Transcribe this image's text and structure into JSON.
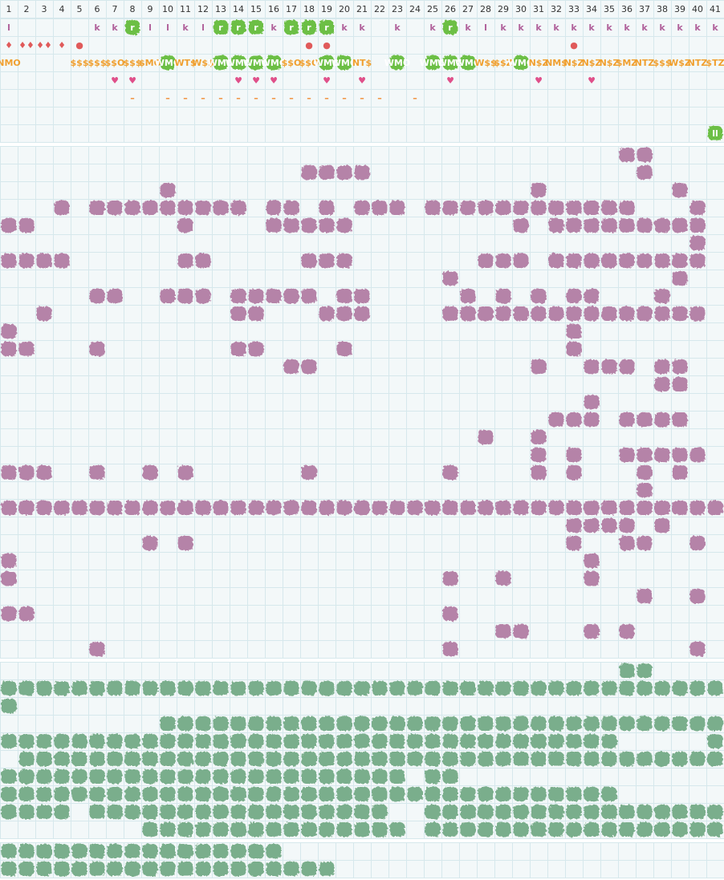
{
  "columns": [
    1,
    2,
    3,
    4,
    5,
    6,
    7,
    8,
    9,
    10,
    11,
    12,
    13,
    14,
    15,
    16,
    17,
    18,
    19,
    20,
    21,
    22,
    23,
    24,
    25,
    26,
    27,
    28,
    29,
    30,
    31,
    32,
    33,
    34,
    35,
    36,
    37,
    38,
    39,
    40,
    41
  ],
  "top_rows": [
    {
      "color": "#b0609a",
      "cells": [
        {
          "col": 1,
          "text": "l"
        },
        {
          "col": 6,
          "text": "k"
        },
        {
          "col": 7,
          "text": "k"
        },
        {
          "col": 8,
          "text": "r",
          "highlight": true
        },
        {
          "col": 9,
          "text": "l"
        },
        {
          "col": 10,
          "text": "l"
        },
        {
          "col": 11,
          "text": "k"
        },
        {
          "col": 12,
          "text": "l"
        },
        {
          "col": 13,
          "text": "r",
          "highlight": true
        },
        {
          "col": 14,
          "text": "r",
          "highlight": true
        },
        {
          "col": 15,
          "text": "r",
          "highlight": true
        },
        {
          "col": 16,
          "text": "k"
        },
        {
          "col": 17,
          "text": "r",
          "highlight": true
        },
        {
          "col": 18,
          "text": "r",
          "highlight": true
        },
        {
          "col": 19,
          "text": "r",
          "highlight": true
        },
        {
          "col": 20,
          "text": "k"
        },
        {
          "col": 21,
          "text": "k"
        },
        {
          "col": 23,
          "text": "k"
        },
        {
          "col": 25,
          "text": "k"
        },
        {
          "col": 26,
          "text": "r",
          "highlight": true
        },
        {
          "col": 27,
          "text": "k"
        },
        {
          "col": 28,
          "text": "l"
        },
        {
          "col": 29,
          "text": "k"
        },
        {
          "col": 30,
          "text": "k"
        },
        {
          "col": 31,
          "text": "k"
        },
        {
          "col": 32,
          "text": "k"
        },
        {
          "col": 33,
          "text": "k"
        },
        {
          "col": 34,
          "text": "k"
        },
        {
          "col": 35,
          "text": "k"
        },
        {
          "col": 36,
          "text": "k"
        },
        {
          "col": 37,
          "text": "k"
        },
        {
          "col": 38,
          "text": "k"
        },
        {
          "col": 39,
          "text": "k"
        },
        {
          "col": 40,
          "text": "k"
        },
        {
          "col": 41,
          "text": "k"
        }
      ]
    },
    {
      "color": "#e05a5a",
      "cells": [
        {
          "col": 1,
          "text": "♦"
        },
        {
          "col": 2,
          "text": "♦♦"
        },
        {
          "col": 3,
          "text": "♦♦"
        },
        {
          "col": 4,
          "text": "♦"
        },
        {
          "col": 5,
          "text": "●"
        },
        {
          "col": 18,
          "text": "●"
        },
        {
          "col": 19,
          "text": "●"
        },
        {
          "col": 33,
          "text": "●"
        }
      ]
    },
    {
      "color": "#f0a030",
      "cells": [
        {
          "col": 1,
          "text": "NMO"
        },
        {
          "col": 5,
          "text": "$$$"
        },
        {
          "col": 6,
          "text": "$$$"
        },
        {
          "col": 7,
          "text": "$$O"
        },
        {
          "col": 8,
          "text": "$$$"
        },
        {
          "col": 9,
          "text": "$MO"
        },
        {
          "col": 10,
          "text": "WMO",
          "highlight": true
        },
        {
          "col": 11,
          "text": "WT$"
        },
        {
          "col": 12,
          "text": "W$$"
        },
        {
          "col": 13,
          "text": "WMO",
          "highlight": true
        },
        {
          "col": 14,
          "text": "WMO",
          "highlight": true
        },
        {
          "col": 15,
          "text": "WMO",
          "highlight": true
        },
        {
          "col": 16,
          "text": "WMO",
          "highlight": true
        },
        {
          "col": 17,
          "text": "$$O"
        },
        {
          "col": 18,
          "text": "$$O"
        },
        {
          "col": 19,
          "text": "WMO",
          "highlight": true
        },
        {
          "col": 20,
          "text": "WMO",
          "highlight": true
        },
        {
          "col": 21,
          "text": "NT$"
        },
        {
          "col": 23,
          "text": "WMO",
          "highlight": true
        },
        {
          "col": 25,
          "text": "WMO",
          "highlight": true
        },
        {
          "col": 26,
          "text": "WMO",
          "highlight": true
        },
        {
          "col": 27,
          "text": "WMO",
          "highlight": true
        },
        {
          "col": 28,
          "text": "W$$"
        },
        {
          "col": 29,
          "text": "$$Z"
        },
        {
          "col": 30,
          "text": "WMO",
          "highlight": true
        },
        {
          "col": 31,
          "text": "N$Z"
        },
        {
          "col": 32,
          "text": "NM$"
        },
        {
          "col": 33,
          "text": "N$Z"
        },
        {
          "col": 34,
          "text": "N$Z"
        },
        {
          "col": 35,
          "text": "N$Z"
        },
        {
          "col": 36,
          "text": "$MZ"
        },
        {
          "col": 37,
          "text": "NTZ"
        },
        {
          "col": 38,
          "text": "$$$"
        },
        {
          "col": 39,
          "text": "W$Z"
        },
        {
          "col": 40,
          "text": "NTZ"
        },
        {
          "col": 41,
          "text": "$TZ"
        }
      ]
    },
    {
      "color": "#e0508a",
      "cells": [
        {
          "col": 7,
          "text": "♥"
        },
        {
          "col": 8,
          "text": "♥"
        },
        {
          "col": 14,
          "text": "♥"
        },
        {
          "col": 15,
          "text": "♥"
        },
        {
          "col": 16,
          "text": "♥"
        },
        {
          "col": 19,
          "text": "♥"
        },
        {
          "col": 21,
          "text": "♥"
        },
        {
          "col": 26,
          "text": "♥"
        },
        {
          "col": 31,
          "text": "♥"
        },
        {
          "col": 34,
          "text": "♥"
        }
      ]
    },
    {
      "color": "#f08a30",
      "cells": [
        {
          "col": 8,
          "text": "–"
        },
        {
          "col": 10,
          "text": "–"
        },
        {
          "col": 11,
          "text": "–"
        },
        {
          "col": 12,
          "text": "–"
        },
        {
          "col": 13,
          "text": "–"
        },
        {
          "col": 14,
          "text": "–"
        },
        {
          "col": 15,
          "text": "–"
        },
        {
          "col": 16,
          "text": "–"
        },
        {
          "col": 17,
          "text": "–"
        },
        {
          "col": 18,
          "text": "–"
        },
        {
          "col": 19,
          "text": "–"
        },
        {
          "col": 20,
          "text": "–"
        },
        {
          "col": 21,
          "text": "–"
        },
        {
          "col": 22,
          "text": "–"
        },
        {
          "col": 24,
          "text": "–"
        }
      ]
    },
    {
      "color": "#f08a30",
      "cells": []
    },
    {
      "color": "#ffffff",
      "cells": [
        {
          "col": 41,
          "text": "ll",
          "highlight": true
        }
      ]
    }
  ],
  "highlight_color": "#6cbf45",
  "sections": [
    {
      "color": "#b583a8",
      "rows": [
        [
          36,
          37
        ],
        [
          18,
          19,
          20,
          21,
          37
        ],
        [
          10,
          31,
          39
        ],
        [
          4,
          6,
          7,
          8,
          9,
          10,
          11,
          12,
          13,
          14,
          16,
          17,
          19,
          21,
          22,
          23,
          25,
          26,
          27,
          28,
          29,
          30,
          31,
          32,
          33,
          34,
          35,
          36,
          40
        ],
        [
          1,
          2,
          11,
          16,
          17,
          18,
          19,
          20,
          30,
          32,
          33,
          34,
          35,
          36,
          37,
          38,
          39,
          40
        ],
        [
          40
        ],
        [
          1,
          2,
          3,
          4,
          11,
          12,
          18,
          19,
          20,
          28,
          29,
          30,
          32,
          33,
          34,
          35,
          36,
          37,
          38,
          39,
          40
        ],
        [
          26,
          39
        ],
        [
          6,
          7,
          10,
          11,
          12,
          14,
          15,
          16,
          17,
          18,
          20,
          21,
          27,
          29,
          31,
          33,
          34,
          38
        ],
        [
          3,
          14,
          15,
          19,
          20,
          21,
          26,
          27,
          28,
          29,
          30,
          31,
          32,
          33,
          34,
          35,
          36,
          37,
          38,
          39,
          40
        ],
        [
          1,
          33
        ],
        [
          1,
          2,
          6,
          14,
          15,
          20,
          33
        ],
        [
          17,
          18,
          31,
          34,
          35,
          36,
          38,
          39
        ],
        [
          38,
          39
        ],
        [
          34
        ],
        [
          32,
          33,
          34,
          36,
          37,
          38,
          39
        ],
        [
          28,
          31
        ],
        [
          31,
          33,
          36,
          37,
          38,
          39,
          40
        ],
        [
          1,
          2,
          3,
          6,
          9,
          11,
          18,
          26,
          31,
          33,
          37,
          39
        ],
        [
          37
        ],
        [
          1,
          2,
          3,
          4,
          5,
          6,
          7,
          8,
          9,
          10,
          11,
          12,
          13,
          14,
          15,
          16,
          17,
          18,
          19,
          20,
          21,
          22,
          23,
          24,
          25,
          26,
          27,
          28,
          29,
          30,
          31,
          32,
          33,
          34,
          35,
          36,
          37,
          38,
          39,
          40,
          41
        ],
        [
          33,
          34,
          35,
          36,
          38
        ],
        [
          9,
          11,
          33,
          36,
          37,
          40
        ],
        [
          1,
          34
        ],
        [
          1,
          26,
          29,
          34
        ],
        [
          37,
          40
        ],
        [
          1,
          2,
          26
        ],
        [
          29,
          30,
          34,
          36
        ],
        [
          6,
          26,
          40
        ]
      ]
    },
    {
      "color": "#7aae8c",
      "rows": [
        [
          36,
          37
        ],
        [
          1,
          2,
          3,
          4,
          5,
          6,
          7,
          8,
          9,
          10,
          11,
          12,
          13,
          14,
          15,
          16,
          17,
          18,
          19,
          20,
          21,
          22,
          23,
          24,
          25,
          26,
          27,
          28,
          29,
          30,
          31,
          32,
          33,
          34,
          35,
          36,
          37,
          38,
          39,
          40,
          41
        ],
        [
          1
        ],
        [
          10,
          11,
          12,
          13,
          14,
          15,
          16,
          17,
          18,
          19,
          20,
          21,
          22,
          23,
          24,
          25,
          26,
          27,
          28,
          29,
          30,
          31,
          32,
          33,
          34,
          35,
          36,
          37,
          38,
          39,
          40,
          41
        ],
        [
          1,
          2,
          3,
          4,
          5,
          6,
          7,
          8,
          9,
          10,
          11,
          12,
          13,
          14,
          15,
          16,
          17,
          18,
          19,
          20,
          21,
          22,
          23,
          24,
          25,
          26,
          27,
          28,
          29,
          30,
          31,
          32,
          33,
          34,
          35,
          41
        ],
        [
          2,
          3,
          4,
          5,
          6,
          7,
          8,
          9,
          10,
          11,
          12,
          13,
          14,
          15,
          16,
          17,
          18,
          19,
          20,
          21,
          22,
          23,
          24,
          25,
          26,
          27,
          28,
          29,
          30,
          31,
          32,
          33,
          34,
          35,
          36,
          37,
          38,
          39,
          40,
          41
        ],
        [
          1,
          2,
          3,
          4,
          5,
          6,
          7,
          8,
          9,
          10,
          11,
          12,
          13,
          14,
          15,
          16,
          17,
          18,
          19,
          20,
          21,
          22,
          23,
          25,
          26
        ],
        [
          1,
          2,
          3,
          4,
          5,
          6,
          7,
          8,
          9,
          10,
          11,
          12,
          13,
          14,
          15,
          16,
          17,
          18,
          19,
          20,
          21,
          22,
          23,
          24,
          25,
          26,
          27,
          28,
          29,
          30,
          31,
          32,
          33,
          34,
          35
        ],
        [
          1,
          2,
          3,
          4,
          6,
          7,
          8,
          9,
          10,
          11,
          12,
          13,
          14,
          15,
          16,
          17,
          18,
          19,
          20,
          21,
          22,
          25,
          26,
          27,
          28,
          29,
          30,
          31,
          32,
          33,
          34,
          35,
          36,
          37,
          38,
          39,
          40,
          41
        ],
        [
          9,
          10,
          11,
          12,
          13,
          14,
          15,
          16,
          17,
          18,
          19,
          20,
          21,
          22,
          23,
          25,
          26,
          27,
          28,
          29,
          30,
          31,
          32,
          33,
          34,
          35,
          36,
          37,
          38,
          39,
          40,
          41
        ]
      ]
    },
    {
      "color": "#7aae8c",
      "rows": [
        [
          1,
          2,
          3,
          4,
          5,
          6,
          7,
          8,
          9,
          10,
          11,
          12,
          13,
          14,
          15,
          16
        ],
        [
          1,
          2,
          3,
          4,
          5,
          6,
          7,
          8,
          9,
          10,
          11,
          12,
          13,
          14,
          15,
          16,
          17,
          18,
          19
        ]
      ]
    }
  ]
}
